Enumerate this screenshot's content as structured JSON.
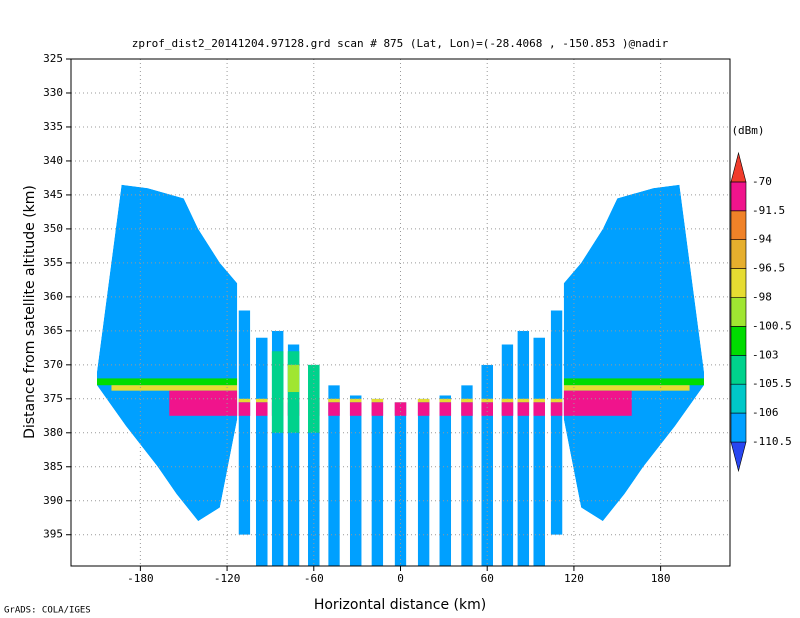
{
  "chart_data": {
    "type": "swath",
    "title": "zprof_dist2_20141204.97128.grd  scan # 875  (Lat, Lon)=(-28.4068 , -150.853 )@nadir",
    "x_label": "Horizontal distance (km)",
    "y_label": "Distance from satellite altitude (km)",
    "footer": "GrADS: COLA/IGES",
    "xlim": [
      -228,
      228
    ],
    "ylim": [
      399.6,
      325
    ],
    "xticks": [
      -180,
      -120,
      -60,
      0,
      60,
      120,
      180
    ],
    "yticks": [
      325,
      330,
      335,
      340,
      345,
      350,
      355,
      360,
      365,
      370,
      375,
      380,
      385,
      390,
      395
    ],
    "grid": true,
    "colorbar": {
      "unit": "(dBm)",
      "levels": [
        -110.5,
        -106,
        -105.5,
        -103,
        -100.5,
        -98,
        -96.5,
        -94,
        -91.5,
        -70
      ],
      "colors": [
        "#2846f0",
        "#00a0ff",
        "#00c8c8",
        "#00d28c",
        "#00dc00",
        "#a0e632",
        "#e6dc32",
        "#e6af2d",
        "#f08228",
        "#f0148c",
        "#f03c2c"
      ]
    },
    "wings": [
      {
        "value": -110.5,
        "x": [
          -193,
          -175,
          -150,
          -140,
          -125,
          -113,
          -113,
          -125,
          -140,
          -155,
          -168,
          -190,
          -210,
          -210
        ],
        "y": [
          343.5,
          344,
          345.5,
          350,
          355,
          358,
          378,
          391,
          393,
          389,
          385,
          379,
          373,
          371
        ]
      },
      {
        "value": -110.5,
        "x": [
          193,
          175,
          150,
          140,
          125,
          113,
          113,
          125,
          140,
          155,
          168,
          190,
          210,
          210
        ],
        "y": [
          343.5,
          344,
          345.5,
          350,
          355,
          358,
          378,
          391,
          393,
          389,
          385,
          379,
          373,
          371
        ]
      }
    ],
    "stripes": {
      "value": -110.5,
      "x": [
        -108,
        -96,
        -85,
        -74,
        -60,
        -46,
        -31,
        -16,
        0,
        16,
        31,
        46,
        60,
        74,
        85,
        96,
        108
      ],
      "top": [
        362,
        366,
        365,
        367,
        370,
        373,
        374.5,
        375,
        375.5,
        375,
        374.5,
        373,
        370,
        367,
        365,
        366,
        362
      ],
      "bottom": [
        395,
        399.6,
        399.6,
        399.6,
        399.6,
        399.6,
        399.6,
        399.6,
        399.6,
        399.6,
        399.6,
        399.6,
        399.6,
        399.6,
        399.6,
        399.6,
        395
      ]
    },
    "bands": [
      {
        "value": -103,
        "x": [
          -210,
          -113
        ],
        "y": [
          372,
          373
        ]
      },
      {
        "value": -98,
        "x": [
          -200,
          -113
        ],
        "y": [
          373,
          373.8
        ]
      },
      {
        "value": -91.5,
        "x": [
          -160,
          -113
        ],
        "y": [
          373.8,
          377.5
        ]
      },
      {
        "value": -103,
        "x": [
          113,
          210
        ],
        "y": [
          372,
          373
        ]
      },
      {
        "value": -98,
        "x": [
          113,
          200
        ],
        "y": [
          373,
          373.8
        ]
      },
      {
        "value": -91.5,
        "x": [
          113,
          160
        ],
        "y": [
          373.8,
          377.5
        ]
      },
      {
        "value": -91.5,
        "x": [
          -113,
          113
        ],
        "y": [
          375.5,
          377.5
        ]
      },
      {
        "value": -98,
        "x": [
          -113,
          113
        ],
        "y": [
          375,
          375.5
        ]
      },
      {
        "value": -105.5,
        "x": [
          -90,
          -55
        ],
        "y": [
          368,
          380
        ]
      },
      {
        "value": -100.5,
        "x": [
          -80,
          -70
        ],
        "y": [
          370,
          374
        ]
      }
    ]
  }
}
